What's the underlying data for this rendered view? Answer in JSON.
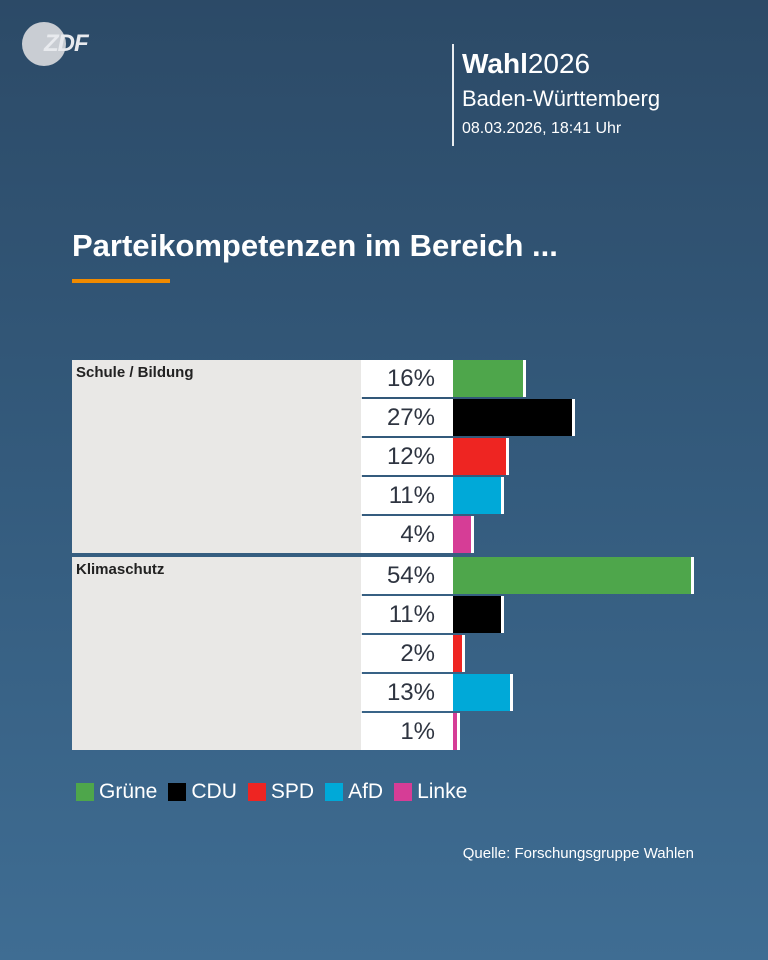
{
  "header": {
    "logo": "ZDF",
    "wahl_bold": "Wahl",
    "wahl_year": "2026",
    "region": "Baden-Württemberg",
    "date": "08.03.2026, 18:41 Uhr"
  },
  "chart_data": {
    "type": "bar",
    "title": "Parteikompetenzen im Bereich ...",
    "unit": "%",
    "parties": [
      "Grüne",
      "CDU",
      "SPD",
      "AfD",
      "Linke"
    ],
    "colors": {
      "Grüne": "#4ea64b",
      "CDU": "#000000",
      "SPD": "#ee2522",
      "AfD": "#00a9d8",
      "Linke": "#d63d96"
    },
    "groups": [
      {
        "label": "Schule / Bildung",
        "values": [
          16,
          27,
          12,
          11,
          4
        ],
        "labels": [
          "16%",
          "27%",
          "12%",
          "11%",
          "4%"
        ]
      },
      {
        "label": "Klimaschutz",
        "values": [
          54,
          11,
          2,
          13,
          1
        ],
        "labels": [
          "54%",
          "11%",
          "2%",
          "13%",
          "1%"
        ]
      }
    ],
    "legend_position": "bottom-left"
  },
  "source": "Quelle: Forschungsgruppe Wahlen"
}
